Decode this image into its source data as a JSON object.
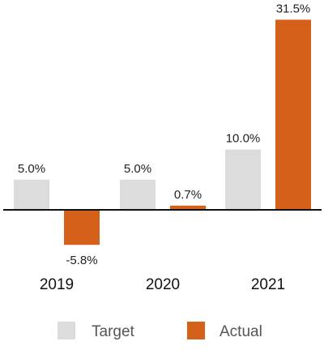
{
  "chart_data": {
    "type": "bar",
    "title": "",
    "xlabel": "",
    "ylabel": "",
    "categories": [
      "2019",
      "2020",
      "2021"
    ],
    "series": [
      {
        "name": "Target",
        "color": "#dcdcdc",
        "values": [
          5.0,
          5.0,
          10.0
        ],
        "labels": [
          "5.0%",
          "5.0%",
          "10.0%"
        ]
      },
      {
        "name": "Actual",
        "color": "#d4601a",
        "values": [
          -5.8,
          0.7,
          31.5
        ],
        "labels": [
          "-5.8%",
          "0.7%",
          "31.5%"
        ]
      }
    ],
    "ylim": [
      -6,
      32
    ],
    "grid": false,
    "legend": "bottom"
  }
}
